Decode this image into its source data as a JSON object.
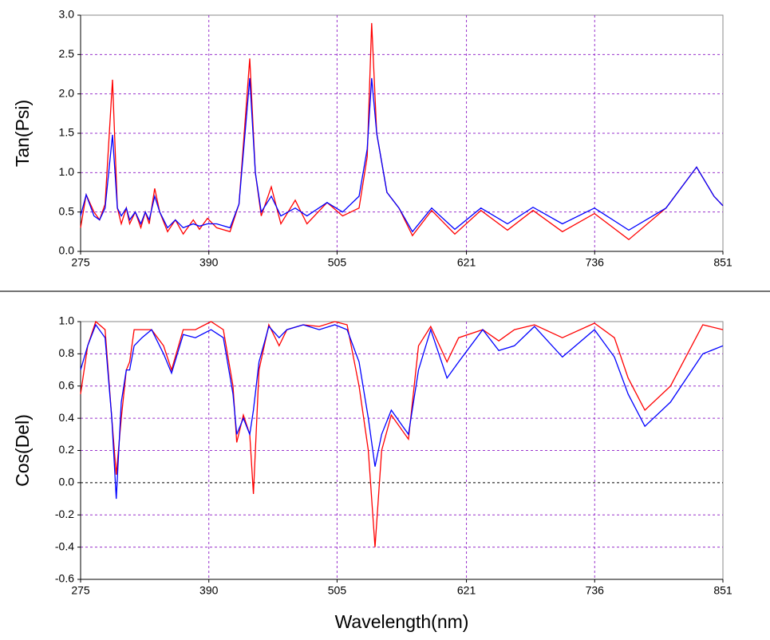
{
  "chart_data": [
    {
      "type": "line",
      "y_label": "Tan(Psi)",
      "x": [
        275,
        280,
        287,
        292,
        297,
        303.6,
        308,
        311.5,
        316,
        319,
        324,
        329,
        333,
        336.5,
        341.5,
        346,
        353,
        360,
        367,
        376,
        381.6,
        388.8,
        397,
        409,
        417,
        426.7,
        431.7,
        437,
        446,
        454.6,
        467.5,
        478,
        496,
        510,
        524.7,
        532,
        536,
        540.5,
        549.7,
        560.5,
        572.6,
        589.8,
        610.6,
        634,
        657.8,
        680.7,
        707,
        735.8,
        766.6,
        800,
        827.4,
        843,
        851
      ],
      "series": [
        {
          "color": "#ff0000",
          "values": [
            0.3,
            0.72,
            0.5,
            0.4,
            0.6,
            2.18,
            0.55,
            0.35,
            0.55,
            0.35,
            0.5,
            0.3,
            0.5,
            0.35,
            0.8,
            0.5,
            0.25,
            0.4,
            0.22,
            0.4,
            0.28,
            0.42,
            0.3,
            0.25,
            0.6,
            2.45,
            1.0,
            0.45,
            0.82,
            0.35,
            0.65,
            0.35,
            0.62,
            0.45,
            0.55,
            1.2,
            2.9,
            1.5,
            0.75,
            0.55,
            0.2,
            0.52,
            0.22,
            0.52,
            0.27,
            0.52,
            0.25,
            0.48,
            0.15,
            0.55,
            1.07,
            0.7,
            0.58
          ]
        },
        {
          "color": "#0000ff",
          "values": [
            0.45,
            0.72,
            0.45,
            0.4,
            0.55,
            1.48,
            0.55,
            0.45,
            0.55,
            0.4,
            0.5,
            0.35,
            0.5,
            0.4,
            0.7,
            0.5,
            0.3,
            0.4,
            0.3,
            0.35,
            0.32,
            0.35,
            0.35,
            0.3,
            0.6,
            2.2,
            1.0,
            0.5,
            0.7,
            0.45,
            0.55,
            0.45,
            0.62,
            0.5,
            0.7,
            1.3,
            2.2,
            1.5,
            0.75,
            0.55,
            0.25,
            0.55,
            0.28,
            0.55,
            0.35,
            0.56,
            0.35,
            0.55,
            0.27,
            0.55,
            1.07,
            0.7,
            0.58
          ]
        }
      ],
      "xlim": [
        275,
        851
      ],
      "xticks": [
        275,
        390,
        505,
        621,
        736,
        851
      ],
      "ylim": [
        0,
        3
      ],
      "yticks": [
        {
          "value": 0,
          "label": "0.0"
        },
        0.5,
        {
          "value": 1,
          "label": "1.0"
        },
        1.5,
        {
          "value": 2,
          "label": "2.0"
        },
        2.5,
        {
          "value": 3,
          "label": "3.0"
        }
      ],
      "grid": true,
      "grid_color": "#9933cc"
    },
    {
      "type": "line",
      "y_label": "Cos(Del)",
      "x_label": "Wavelength(nm)",
      "x": [
        275,
        281.4,
        288.6,
        297,
        303,
        307,
        311.5,
        316,
        319,
        323,
        330,
        338.7,
        349.4,
        356.6,
        367,
        378,
        392,
        403,
        411.7,
        415,
        421,
        426.7,
        430,
        435,
        443.8,
        453,
        460,
        474.6,
        489,
        503,
        514,
        524.7,
        533,
        539,
        545,
        553.6,
        569,
        578,
        589,
        603.6,
        614,
        635.6,
        650,
        664,
        682,
        707,
        735.8,
        753.7,
        766,
        781,
        804,
        833,
        851
      ],
      "series": [
        {
          "color": "#ff0000",
          "values": [
            0.55,
            0.85,
            1.0,
            0.95,
            0.4,
            0.05,
            0.4,
            0.7,
            0.75,
            0.95,
            0.95,
            0.95,
            0.85,
            0.7,
            0.95,
            0.95,
            1.0,
            0.95,
            0.6,
            0.25,
            0.42,
            0.3,
            -0.07,
            0.7,
            0.98,
            0.85,
            0.95,
            0.98,
            0.97,
            1.0,
            0.98,
            0.6,
            0.2,
            -0.4,
            0.2,
            0.42,
            0.27,
            0.85,
            0.97,
            0.75,
            0.9,
            0.95,
            0.88,
            0.95,
            0.98,
            0.9,
            0.99,
            0.9,
            0.65,
            0.45,
            0.6,
            0.98,
            0.95
          ]
        },
        {
          "color": "#0000ff",
          "values": [
            0.7,
            0.85,
            0.98,
            0.9,
            0.4,
            -0.1,
            0.5,
            0.7,
            0.7,
            0.85,
            0.9,
            0.95,
            0.8,
            0.68,
            0.92,
            0.9,
            0.95,
            0.9,
            0.55,
            0.3,
            0.4,
            0.3,
            0.45,
            0.75,
            0.97,
            0.9,
            0.95,
            0.98,
            0.95,
            0.98,
            0.95,
            0.75,
            0.4,
            0.1,
            0.3,
            0.45,
            0.3,
            0.7,
            0.95,
            0.65,
            0.75,
            0.95,
            0.82,
            0.85,
            0.97,
            0.78,
            0.95,
            0.78,
            0.55,
            0.35,
            0.5,
            0.8,
            0.85
          ]
        }
      ],
      "xlim": [
        275,
        851
      ],
      "xticks": [
        275,
        390,
        505,
        621,
        736,
        851
      ],
      "ylim": [
        -0.6,
        1
      ],
      "yticks": [
        -0.6,
        -0.4,
        -0.2,
        {
          "value": 0,
          "label": "0.0"
        },
        0.2,
        0.4,
        0.6,
        0.8,
        {
          "value": 1,
          "label": "1.0"
        }
      ],
      "grid": true,
      "grid_color": "#9933cc"
    }
  ]
}
